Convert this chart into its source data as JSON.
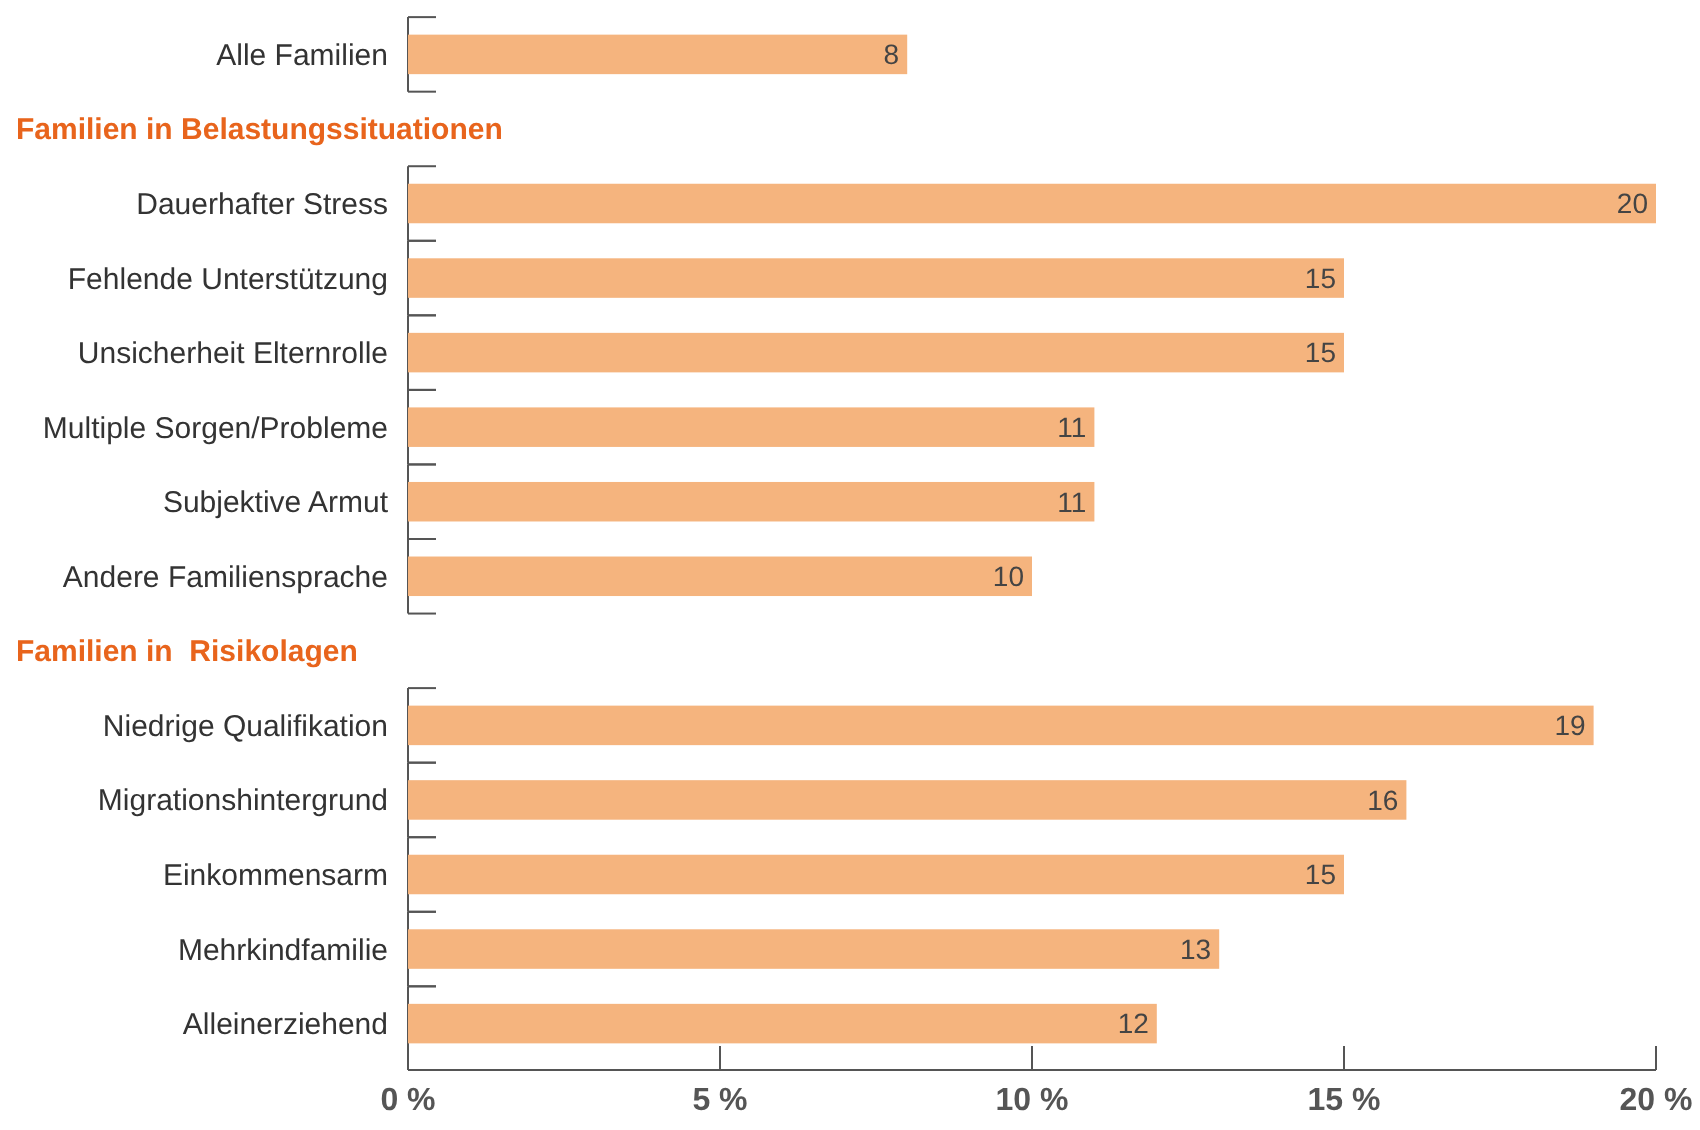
{
  "chart_data": {
    "type": "bar",
    "orientation": "horizontal",
    "categories": [
      "Alle Familien",
      null,
      "Dauerhafter Stress",
      "Fehlende Unterstützung",
      "Unsicherheit Elternrolle",
      "Multiple Sorgen/Probleme",
      "Subjektive Armut",
      "Andere Familiensprache",
      null,
      "Niedrige Qualifikation",
      "Migrationshintergrund",
      "Einkommensarm",
      "Mehrkindfamilie",
      "Alleinerziehend"
    ],
    "values": [
      8,
      null,
      20,
      15,
      15,
      11,
      11,
      10,
      null,
      19,
      16,
      15,
      13,
      12
    ],
    "color": "#f5b47e",
    "annotations": [
      "Familien in Belastungssituationen",
      "Familien in  Risikolagen"
    ],
    "xlim": [
      0,
      20
    ],
    "xticks": [
      {
        "value": 0,
        "label": "0 %"
      },
      {
        "value": 5,
        "label": "5 %"
      },
      {
        "value": 10,
        "label": "10 %"
      },
      {
        "value": 15,
        "label": "15 %"
      },
      {
        "value": 20,
        "label": "20 %"
      }
    ],
    "data_labels": true,
    "grid": false
  }
}
